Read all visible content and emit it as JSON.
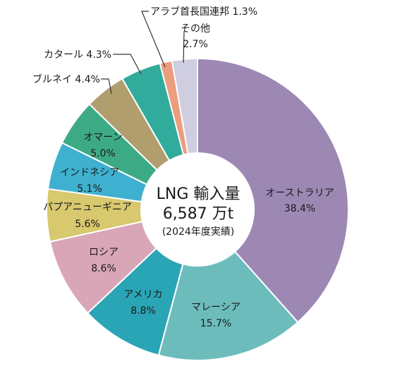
{
  "chart_data": {
    "type": "pie",
    "donut": true,
    "center": {
      "title": "LNG 輸入量",
      "total": "6,587 万t",
      "note": "(2024年度実績)"
    },
    "slices": [
      {
        "label": "オーストラリア",
        "value": 38.4,
        "value_text": "38.4%",
        "color": "#9d88b4"
      },
      {
        "label": "マレーシア",
        "value": 15.7,
        "value_text": "15.7%",
        "color": "#6dbcbc"
      },
      {
        "label": "アメリカ",
        "value": 8.8,
        "value_text": "8.8%",
        "color": "#2aa5b5"
      },
      {
        "label": "ロシア",
        "value": 8.6,
        "value_text": "8.6%",
        "color": "#d9a6b8"
      },
      {
        "label": "パプアニューギニア",
        "value": 5.6,
        "value_text": "5.6%",
        "color": "#d8c86e"
      },
      {
        "label": "インドネシア",
        "value": 5.1,
        "value_text": "5.1%",
        "color": "#3fb0cf"
      },
      {
        "label": "オマーン",
        "value": 5.0,
        "value_text": "5.0%",
        "color": "#3daa86"
      },
      {
        "label": "ブルネイ",
        "value": 4.4,
        "value_text": "4.4%",
        "color": "#b09e6e"
      },
      {
        "label": "カタール",
        "value": 4.3,
        "value_text": "4.3%",
        "color": "#31ab9c"
      },
      {
        "label": "アラブ首長国連邦",
        "value": 1.3,
        "value_text": "1.3%",
        "color": "#ec9d7e"
      },
      {
        "label": "その他",
        "value": 2.7,
        "value_text": "2.7%",
        "color": "#cfcde0"
      }
    ]
  }
}
